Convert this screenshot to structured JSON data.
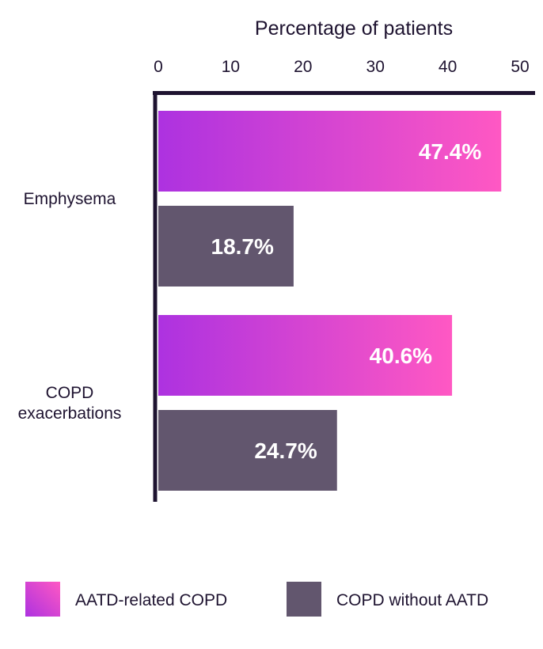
{
  "chart_data": {
    "type": "bar",
    "orientation": "horizontal",
    "title": "",
    "xlabel": "Percentage of patients",
    "ylabel": "",
    "xlim": [
      0,
      50
    ],
    "x_ticks": [
      0,
      10,
      20,
      30,
      40,
      50
    ],
    "x_tick_labels": [
      "0",
      "10",
      "20",
      "30",
      "40",
      "50"
    ],
    "x_axis_position": "top",
    "grid": false,
    "categories": [
      "Emphysema",
      "COPD exacerbations"
    ],
    "category_label_lines": [
      [
        "Emphysema"
      ],
      [
        "COPD",
        "exacerbations"
      ]
    ],
    "series": [
      {
        "name": "AATD-related COPD",
        "values": [
          47.4,
          40.6
        ],
        "data_labels": [
          "47.4%",
          "40.6%"
        ],
        "color_start": "#ad32e0",
        "color_end": "#ff58c3"
      },
      {
        "name": "COPD without AATD",
        "values": [
          18.7,
          24.7
        ],
        "data_labels": [
          "18.7%",
          "24.7%"
        ],
        "color": "#62566e"
      }
    ],
    "legend_position": "bottom"
  }
}
